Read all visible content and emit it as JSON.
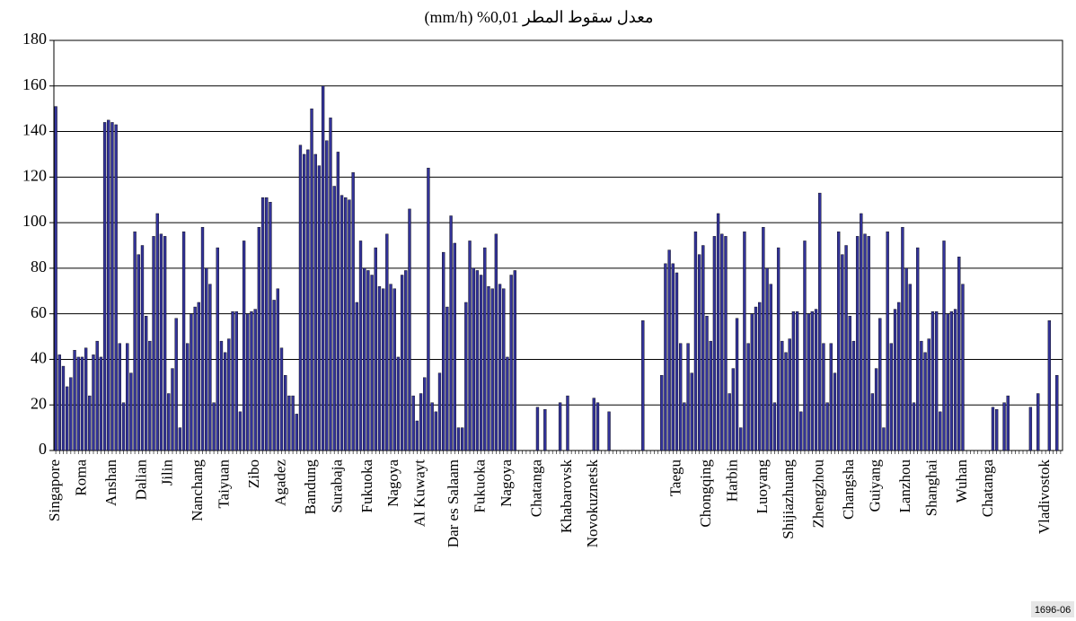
{
  "chart_data": {
    "type": "bar",
    "title": "معدل سقوط المطر 0,01% (mm/h)",
    "figure_id": "1696-06",
    "color": "#333399",
    "grid": true,
    "ylim": [
      0,
      180
    ],
    "yticks": [
      0,
      20,
      40,
      60,
      80,
      100,
      120,
      140,
      160,
      180
    ],
    "categories": [
      "Singapore",
      null,
      null,
      null,
      null,
      null,
      null,
      "Roma",
      null,
      null,
      null,
      null,
      null,
      null,
      null,
      "Anshan",
      null,
      null,
      null,
      null,
      null,
      null,
      null,
      "Dalian",
      null,
      null,
      null,
      null,
      null,
      null,
      "Jilin",
      null,
      null,
      null,
      null,
      null,
      null,
      null,
      "Nanchang",
      null,
      null,
      null,
      null,
      null,
      null,
      "Taiyuan",
      null,
      null,
      null,
      null,
      null,
      null,
      null,
      "Zibo",
      null,
      null,
      null,
      null,
      null,
      null,
      "Agadez",
      null,
      null,
      null,
      null,
      null,
      null,
      null,
      "Bandung",
      null,
      null,
      null,
      null,
      null,
      null,
      "Surabaja",
      null,
      null,
      null,
      null,
      null,
      null,
      null,
      "Fukuoka",
      null,
      null,
      null,
      null,
      null,
      null,
      "Nagoya",
      null,
      null,
      null,
      null,
      null,
      null,
      "Al Kuwayt",
      null,
      null,
      null,
      null,
      null,
      null,
      null,
      null,
      "Dar es Salaam",
      null,
      null,
      null,
      null,
      null,
      null,
      "Fukuoka",
      null,
      null,
      null,
      null,
      null,
      null,
      "Nagoya",
      null,
      null,
      null,
      null,
      null,
      null,
      null,
      "Chatanga",
      null,
      null,
      null,
      null,
      null,
      null,
      null,
      "Khabarovsk",
      null,
      null,
      null,
      null,
      null,
      null,
      "Novokuznetsk",
      null,
      null,
      null,
      null,
      null,
      null,
      null,
      null,
      null,
      null,
      null,
      null,
      null,
      null,
      null,
      null,
      null,
      null,
      null,
      null,
      null,
      "Taegu",
      null,
      null,
      null,
      null,
      null,
      null,
      null,
      "Chongqing",
      null,
      null,
      null,
      null,
      null,
      null,
      "Harbin",
      null,
      null,
      null,
      null,
      null,
      null,
      null,
      "Luoyang",
      null,
      null,
      null,
      null,
      null,
      null,
      "Shijiazhuang",
      null,
      null,
      null,
      null,
      null,
      null,
      null,
      "Zhengzhou",
      null,
      null,
      null,
      null,
      null,
      null,
      null,
      "Changsha",
      null,
      null,
      null,
      null,
      null,
      null,
      "Guiyang",
      null,
      null,
      null,
      null,
      null,
      null,
      null,
      "Lanzhou",
      null,
      null,
      null,
      null,
      null,
      null,
      "Shanghai",
      null,
      null,
      null,
      null,
      null,
      null,
      null,
      "Wuhan",
      null,
      null,
      null,
      null,
      null,
      null,
      "Chatanga",
      null,
      null,
      null,
      null,
      null,
      null,
      null,
      null,
      null,
      null,
      null,
      null,
      null,
      null,
      "Vladivostok",
      null,
      null,
      null,
      null
    ],
    "values": [
      151,
      42,
      37,
      28,
      32,
      44,
      41,
      41,
      45,
      24,
      42,
      48,
      41,
      144,
      145,
      144,
      143,
      47,
      21,
      47,
      34,
      96,
      86,
      90,
      59,
      48,
      94,
      104,
      95,
      94,
      25,
      36,
      58,
      10,
      96,
      47,
      60,
      63,
      65,
      98,
      80,
      73,
      21,
      89,
      48,
      43,
      49,
      61,
      61,
      17,
      92,
      60,
      61,
      62,
      98,
      111,
      111,
      109,
      66,
      71,
      45,
      33,
      24,
      24,
      16,
      134,
      130,
      132,
      150,
      130,
      125,
      160,
      136,
      146,
      116,
      131,
      112,
      111,
      110,
      122,
      65,
      92,
      80,
      79,
      77,
      89,
      72,
      71,
      95,
      73,
      71,
      41,
      77,
      79,
      106,
      24,
      13,
      25,
      32,
      124,
      21,
      17,
      34,
      87,
      63,
      103,
      91,
      10,
      10,
      65,
      92,
      80,
      79,
      77,
      89,
      72,
      71,
      95,
      73,
      71,
      41,
      77,
      79,
      0,
      0,
      0,
      0,
      0,
      19,
      0,
      18,
      0,
      0,
      0,
      21,
      0,
      24,
      0,
      0,
      0,
      0,
      0,
      0,
      23,
      21,
      0,
      0,
      17,
      0,
      0,
      0,
      0,
      0,
      0,
      0,
      0,
      57,
      0,
      0,
      0,
      0,
      33,
      82,
      88,
      82,
      78,
      47,
      21,
      47,
      34,
      96,
      86,
      90,
      59,
      48,
      94,
      104,
      95,
      94,
      25,
      36,
      58,
      10,
      96,
      47,
      60,
      63,
      65,
      98,
      80,
      73,
      21,
      89,
      48,
      43,
      49,
      61,
      61,
      17,
      92,
      60,
      61,
      62,
      113,
      47,
      21,
      47,
      34,
      96,
      86,
      90,
      59,
      48,
      94,
      104,
      95,
      94,
      25,
      36,
      58,
      10,
      96,
      47,
      62,
      65,
      98,
      80,
      73,
      21,
      89,
      48,
      43,
      49,
      61,
      61,
      17,
      92,
      60,
      61,
      62,
      85,
      73,
      0,
      0,
      0,
      0,
      0,
      0,
      0,
      19,
      18,
      0,
      21,
      24,
      0,
      0,
      0,
      0,
      0,
      19,
      0,
      25,
      0,
      0,
      57,
      0,
      33,
      0
    ]
  }
}
